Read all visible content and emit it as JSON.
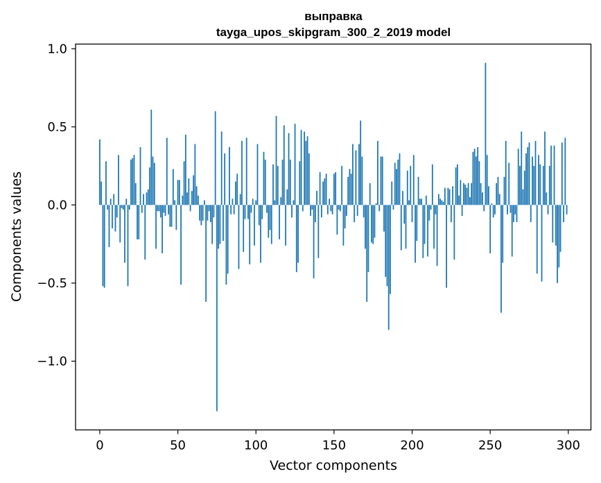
{
  "chart_data": {
    "type": "bar",
    "title": "выправка",
    "subtitle": "tayga_upos_skipgram_300_2_2019 model",
    "xlabel": "Vector components",
    "ylabel": "Components values",
    "xlim": [
      -15.5,
      314.5
    ],
    "ylim": [
      -1.44,
      1.03
    ],
    "xticks": [
      0,
      50,
      100,
      150,
      200,
      250,
      300
    ],
    "yticks": [
      -1.0,
      -0.5,
      0.0,
      0.5,
      1.0
    ],
    "ytick_labels": [
      "−1.0",
      "−0.5",
      "0.0",
      "0.5",
      "1.0"
    ],
    "xtick_labels": [
      "0",
      "50",
      "100",
      "150",
      "200",
      "250",
      "300"
    ],
    "bar_color": "#1f77b4",
    "grid": false,
    "x": [
      0,
      1,
      2,
      3,
      4,
      5,
      6,
      7,
      8,
      9,
      10,
      11,
      12,
      13,
      14,
      15,
      16,
      17,
      18,
      19,
      20,
      21,
      22,
      23,
      24,
      25,
      26,
      27,
      28,
      29,
      30,
      31,
      32,
      33,
      34,
      35,
      36,
      37,
      38,
      39,
      40,
      41,
      42,
      43,
      44,
      45,
      46,
      47,
      48,
      49,
      50,
      51,
      52,
      53,
      54,
      55,
      56,
      57,
      58,
      59,
      60,
      61,
      62,
      63,
      64,
      65,
      66,
      67,
      68,
      69,
      70,
      71,
      72,
      73,
      74,
      75,
      76,
      77,
      78,
      79,
      80,
      81,
      82,
      83,
      84,
      85,
      86,
      87,
      88,
      89,
      90,
      91,
      92,
      93,
      94,
      95,
      96,
      97,
      98,
      99,
      100,
      101,
      102,
      103,
      104,
      105,
      106,
      107,
      108,
      109,
      110,
      111,
      112,
      113,
      114,
      115,
      116,
      117,
      118,
      119,
      120,
      121,
      122,
      123,
      124,
      125,
      126,
      127,
      128,
      129,
      130,
      131,
      132,
      133,
      134,
      135,
      136,
      137,
      138,
      139,
      140,
      141,
      142,
      143,
      144,
      145,
      146,
      147,
      148,
      149,
      150,
      151,
      152,
      153,
      154,
      155,
      156,
      157,
      158,
      159,
      160,
      161,
      162,
      163,
      164,
      165,
      166,
      167,
      168,
      169,
      170,
      171,
      172,
      173,
      174,
      175,
      176,
      177,
      178,
      179,
      180,
      181,
      182,
      183,
      184,
      185,
      186,
      187,
      188,
      189,
      190,
      191,
      192,
      193,
      194,
      195,
      196,
      197,
      198,
      199,
      200,
      201,
      202,
      203,
      204,
      205,
      206,
      207,
      208,
      209,
      210,
      211,
      212,
      213,
      214,
      215,
      216,
      217,
      218,
      219,
      220,
      221,
      222,
      223,
      224,
      225,
      226,
      227,
      228,
      229,
      230,
      231,
      232,
      233,
      234,
      235,
      236,
      237,
      238,
      239,
      240,
      241,
      242,
      243,
      244,
      245,
      246,
      247,
      248,
      249,
      250,
      251,
      252,
      253,
      254,
      255,
      256,
      257,
      258,
      259,
      260,
      261,
      262,
      263,
      264,
      265,
      266,
      267,
      268,
      269,
      270,
      271,
      272,
      273,
      274,
      275,
      276,
      277,
      278,
      279,
      280,
      281,
      282,
      283,
      284,
      285,
      286,
      287,
      288,
      289,
      290,
      291,
      292,
      293,
      294,
      295,
      296,
      297,
      298,
      299
    ],
    "values": [
      0.42,
      0.15,
      -0.52,
      -0.53,
      0.28,
      -0.03,
      -0.27,
      0.04,
      -0.15,
      0.07,
      -0.17,
      -0.08,
      0.32,
      -0.24,
      -0.02,
      -0.03,
      -0.37,
      0.04,
      -0.52,
      -0.03,
      0.29,
      0.3,
      0.32,
      0.14,
      -0.22,
      -0.22,
      0.37,
      -0.05,
      0.07,
      -0.35,
      0.08,
      0.1,
      0.24,
      0.61,
      0.31,
      0.27,
      -0.28,
      -0.04,
      -0.04,
      -0.08,
      -0.31,
      -0.05,
      -0.07,
      0.43,
      -0.06,
      -0.14,
      -0.14,
      0.23,
      0.03,
      -0.16,
      0.16,
      0.16,
      -0.51,
      0.06,
      0.28,
      0.45,
      0.08,
      0.17,
      -0.04,
      0.09,
      0.19,
      0.39,
      0.12,
      0.06,
      -0.1,
      -0.13,
      -0.1,
      0.03,
      -0.62,
      -0.1,
      -0.04,
      -0.11,
      -0.25,
      -0.08,
      0.6,
      -1.32,
      -0.28,
      -0.25,
      0.47,
      -0.23,
      0.33,
      -0.51,
      -0.44,
      0.37,
      -0.06,
      0.04,
      -0.06,
      0.15,
      0.2,
      -0.41,
      0.07,
      0.41,
      -0.3,
      -0.09,
      0.43,
      -0.09,
      -0.38,
      -0.05,
      0.04,
      -0.26,
      0.03,
      0.39,
      -0.13,
      -0.37,
      -0.09,
      0.34,
      0.29,
      -0.05,
      -0.21,
      -0.16,
      -0.25,
      0.26,
      0.03,
      0.57,
      0.25,
      -0.22,
      0.05,
      0.29,
      0.51,
      -0.26,
      0.1,
      0.46,
      0.29,
      -0.08,
      0.03,
      0.52,
      -0.43,
      -0.37,
      0.28,
      0.48,
      -0.04,
      0.47,
      0.41,
      0.44,
      0.33,
      -0.07,
      -0.03,
      -0.47,
      -0.11,
      0.09,
      -0.34,
      0.21,
      -0.08,
      0.15,
      0.17,
      0.2,
      -0.06,
      0.04,
      -0.04,
      -0.06,
      0.2,
      0.21,
      -0.19,
      -0.03,
      -0.04,
      0.25,
      -0.26,
      -0.15,
      -0.07,
      0.18,
      0.23,
      0.2,
      0.39,
      -0.11,
      0.35,
      -0.07,
      0.39,
      0.54,
      0.31,
      -0.08,
      -0.28,
      -0.62,
      -0.43,
      0.14,
      -0.24,
      -0.25,
      -0.21,
      0.01,
      0.41,
      -0.04,
      0.31,
      0.31,
      -0.17,
      -0.46,
      -0.52,
      -0.8,
      -0.57,
      0.15,
      -0.03,
      0.27,
      0.23,
      0.29,
      0.33,
      -0.29,
      0.09,
      -0.12,
      -0.28,
      0.22,
      0.03,
      0.25,
      -0.11,
      0.32,
      -0.37,
      -0.23,
      0.18,
      0.04,
      0.04,
      -0.34,
      -0.25,
      0.06,
      -0.33,
      -0.1,
      -0.03,
      0.26,
      -0.28,
      -0.06,
      -0.39,
      0.07,
      0.04,
      0.03,
      0.02,
      0.11,
      -0.53,
      0.11,
      0.1,
      -0.11,
      0.12,
      -0.35,
      0.24,
      0.26,
      0.06,
      0.16,
      -0.07,
      0.14,
      0.13,
      0.11,
      0.14,
      0.05,
      0.14,
      0.34,
      0.36,
      0.31,
      0.37,
      0.28,
      0.14,
      0.08,
      -0.04,
      0.91,
      0.32,
      0.12,
      -0.31,
      0.01,
      -0.08,
      -0.06,
      0.14,
      0.18,
      0.07,
      -0.69,
      -0.37,
      0.18,
      0.41,
      -0.06,
      0.27,
      -0.05,
      -0.33,
      -0.11,
      -0.06,
      -0.11,
      0.36,
      0.25,
      0.47,
      0.1,
      0.22,
      0.33,
      0.37,
      0.4,
      -0.11,
      0.31,
      0.25,
      0.41,
      -0.44,
      0.32,
      0.26,
      -0.49,
      0.25,
      0.47,
      0.08,
      -0.06,
      0.25,
      0.38,
      -0.24,
      0.38,
      -0.26,
      -0.5,
      -0.4,
      -0.3,
      0.4,
      -0.11,
      0.43,
      -0.06
    ]
  }
}
